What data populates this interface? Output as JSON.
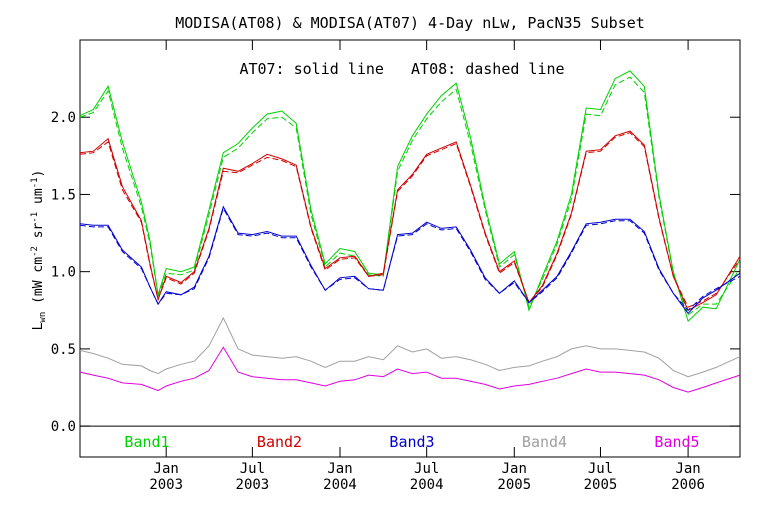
{
  "chart_data": {
    "type": "line",
    "title": "MODISA(AT08) & MODISA(AT07) 4-Day nLw, PacN35 Subset",
    "annotation": "AT07: solid line   AT08: dashed line",
    "ylabel": "Lwn (mW cm-2 sr-1 um-1)",
    "ylabel_parts": {
      "base": "L",
      "sub": "wn",
      "open": "(mW cm",
      "exp1": "-2",
      "mid1": " sr",
      "exp2": "-1",
      "mid2": " um",
      "exp3": "-1",
      "close": ")"
    },
    "ylim": [
      -0.2,
      2.5
    ],
    "y_ticks": [
      "0.0",
      "0.5",
      "1.0",
      "1.5",
      "2.0"
    ],
    "y_tick_values": [
      0.0,
      0.5,
      1.0,
      1.5,
      2.0
    ],
    "xlim": [
      "2002-07-04",
      "2006-04-20"
    ],
    "x_ticks": [
      {
        "date": "2003-01-01",
        "month": "Jan",
        "year": "2003"
      },
      {
        "date": "2003-07-01",
        "month": "Jul",
        "year": "2003"
      },
      {
        "date": "2004-01-01",
        "month": "Jan",
        "year": "2004"
      },
      {
        "date": "2004-07-01",
        "month": "Jul",
        "year": "2004"
      },
      {
        "date": "2005-01-01",
        "month": "Jan",
        "year": "2005"
      },
      {
        "date": "2005-07-01",
        "month": "Jul",
        "year": "2005"
      },
      {
        "date": "2006-01-01",
        "month": "Jan",
        "year": "2006"
      }
    ],
    "zero_line": 0.0,
    "x": [
      "2002-07-04",
      "2002-08-01",
      "2002-09-01",
      "2002-10-01",
      "2002-11-10",
      "2002-11-28",
      "2002-12-15",
      "2003-01-01",
      "2003-02-01",
      "2003-03-01",
      "2003-04-01",
      "2003-05-01",
      "2003-06-01",
      "2003-07-01",
      "2003-08-01",
      "2003-09-01",
      "2003-10-01",
      "2003-11-01",
      "2003-12-01",
      "2004-01-01",
      "2004-02-01",
      "2004-03-01",
      "2004-04-01",
      "2004-05-01",
      "2004-06-01",
      "2004-07-01",
      "2004-08-01",
      "2004-09-01",
      "2004-10-01",
      "2004-11-01",
      "2004-12-01",
      "2005-01-01",
      "2005-02-01",
      "2005-03-01",
      "2005-04-01",
      "2005-05-01",
      "2005-06-01",
      "2005-07-01",
      "2005-08-01",
      "2005-09-01",
      "2005-10-01",
      "2005-11-01",
      "2005-12-01",
      "2006-01-01",
      "2006-02-01",
      "2006-03-01",
      "2006-04-20"
    ],
    "series": [
      {
        "name": "Band1",
        "color": "#00d000",
        "line": "solid",
        "values": [
          2.01,
          2.05,
          2.2,
          1.84,
          1.45,
          1.2,
          0.85,
          1.02,
          1.0,
          1.03,
          1.4,
          1.77,
          1.83,
          1.93,
          2.02,
          2.04,
          1.96,
          1.4,
          1.05,
          1.15,
          1.13,
          0.99,
          0.98,
          1.68,
          1.88,
          2.02,
          2.14,
          2.22,
          1.87,
          1.42,
          1.05,
          1.13,
          0.75,
          0.97,
          1.2,
          1.5,
          2.06,
          2.05,
          2.25,
          2.3,
          2.2,
          1.5,
          1.0,
          0.68,
          0.77,
          0.76,
          1.08
        ]
      },
      {
        "name": "Band1",
        "color": "#00d000",
        "line": "dashed",
        "values": [
          2.0,
          2.03,
          2.17,
          1.8,
          1.42,
          1.18,
          0.84,
          0.99,
          0.98,
          1.01,
          1.37,
          1.74,
          1.8,
          1.9,
          1.99,
          2.0,
          1.93,
          1.37,
          1.03,
          1.12,
          1.1,
          0.98,
          0.97,
          1.65,
          1.85,
          1.99,
          2.1,
          2.18,
          1.83,
          1.4,
          1.03,
          1.11,
          0.77,
          0.95,
          1.18,
          1.47,
          2.02,
          2.01,
          2.21,
          2.26,
          2.16,
          1.48,
          0.99,
          0.72,
          0.79,
          0.79,
          1.02
        ]
      },
      {
        "name": "Band2",
        "color": "#d00000",
        "line": "solid",
        "values": [
          1.77,
          1.78,
          1.86,
          1.55,
          1.33,
          1.05,
          0.82,
          0.97,
          0.93,
          1.0,
          1.28,
          1.67,
          1.65,
          1.7,
          1.76,
          1.73,
          1.69,
          1.29,
          1.02,
          1.09,
          1.1,
          0.97,
          0.99,
          1.53,
          1.63,
          1.76,
          1.8,
          1.84,
          1.56,
          1.25,
          1.0,
          1.07,
          0.8,
          0.91,
          1.12,
          1.38,
          1.78,
          1.79,
          1.88,
          1.91,
          1.82,
          1.35,
          0.97,
          0.75,
          0.8,
          0.85,
          1.1
        ]
      },
      {
        "name": "Band2",
        "color": "#d00000",
        "line": "dashed",
        "values": [
          1.76,
          1.77,
          1.84,
          1.53,
          1.32,
          1.04,
          0.82,
          0.96,
          0.92,
          0.99,
          1.27,
          1.65,
          1.64,
          1.69,
          1.74,
          1.72,
          1.68,
          1.28,
          1.01,
          1.08,
          1.09,
          0.97,
          0.98,
          1.52,
          1.62,
          1.75,
          1.79,
          1.83,
          1.55,
          1.24,
          0.99,
          1.06,
          0.8,
          0.9,
          1.11,
          1.37,
          1.77,
          1.78,
          1.87,
          1.9,
          1.81,
          1.34,
          0.97,
          0.77,
          0.81,
          0.86,
          1.08
        ]
      },
      {
        "name": "Band3",
        "color": "#0000d0",
        "line": "solid",
        "values": [
          1.31,
          1.3,
          1.3,
          1.14,
          1.03,
          0.9,
          0.79,
          0.87,
          0.85,
          0.9,
          1.1,
          1.42,
          1.25,
          1.24,
          1.26,
          1.23,
          1.23,
          1.04,
          0.88,
          0.96,
          0.97,
          0.89,
          0.88,
          1.24,
          1.25,
          1.32,
          1.28,
          1.29,
          1.14,
          0.96,
          0.86,
          0.94,
          0.8,
          0.88,
          0.97,
          1.13,
          1.31,
          1.32,
          1.34,
          1.34,
          1.26,
          1.02,
          0.86,
          0.73,
          0.83,
          0.88,
          0.99
        ]
      },
      {
        "name": "Band3",
        "color": "#0000d0",
        "line": "dashed",
        "values": [
          1.3,
          1.29,
          1.29,
          1.13,
          1.02,
          0.9,
          0.79,
          0.86,
          0.85,
          0.89,
          1.09,
          1.41,
          1.24,
          1.23,
          1.25,
          1.22,
          1.22,
          1.03,
          0.88,
          0.95,
          0.96,
          0.89,
          0.88,
          1.23,
          1.24,
          1.31,
          1.27,
          1.28,
          1.13,
          0.95,
          0.86,
          0.93,
          0.8,
          0.87,
          0.96,
          1.12,
          1.3,
          1.31,
          1.33,
          1.33,
          1.25,
          1.01,
          0.86,
          0.75,
          0.84,
          0.89,
          0.97
        ]
      },
      {
        "name": "Band4",
        "color": "#a0a0a0",
        "line": "solid",
        "values": [
          0.49,
          0.47,
          0.44,
          0.4,
          0.39,
          0.36,
          0.34,
          0.37,
          0.4,
          0.42,
          0.52,
          0.7,
          0.5,
          0.46,
          0.45,
          0.44,
          0.45,
          0.42,
          0.38,
          0.42,
          0.42,
          0.45,
          0.43,
          0.52,
          0.48,
          0.5,
          0.44,
          0.45,
          0.43,
          0.4,
          0.36,
          0.38,
          0.39,
          0.42,
          0.45,
          0.5,
          0.52,
          0.5,
          0.5,
          0.49,
          0.48,
          0.44,
          0.36,
          0.32,
          0.35,
          0.38,
          0.45
        ]
      },
      {
        "name": "Band5",
        "color": "#e000e0",
        "line": "solid",
        "values": [
          0.35,
          0.33,
          0.31,
          0.28,
          0.27,
          0.25,
          0.23,
          0.26,
          0.29,
          0.31,
          0.36,
          0.51,
          0.35,
          0.32,
          0.31,
          0.3,
          0.3,
          0.28,
          0.26,
          0.29,
          0.3,
          0.33,
          0.32,
          0.37,
          0.34,
          0.35,
          0.31,
          0.31,
          0.29,
          0.27,
          0.24,
          0.26,
          0.27,
          0.29,
          0.31,
          0.34,
          0.37,
          0.35,
          0.35,
          0.34,
          0.33,
          0.3,
          0.25,
          0.22,
          0.25,
          0.28,
          0.33
        ]
      }
    ],
    "legend": [
      {
        "label": "Band1",
        "color": "#00d000"
      },
      {
        "label": "Band2",
        "color": "#d00000"
      },
      {
        "label": "Band3",
        "color": "#0000d0"
      },
      {
        "label": "Band4",
        "color": "#a0a0a0"
      },
      {
        "label": "Band5",
        "color": "#e000e0"
      }
    ],
    "legend_position": "bottom inside plot"
  }
}
